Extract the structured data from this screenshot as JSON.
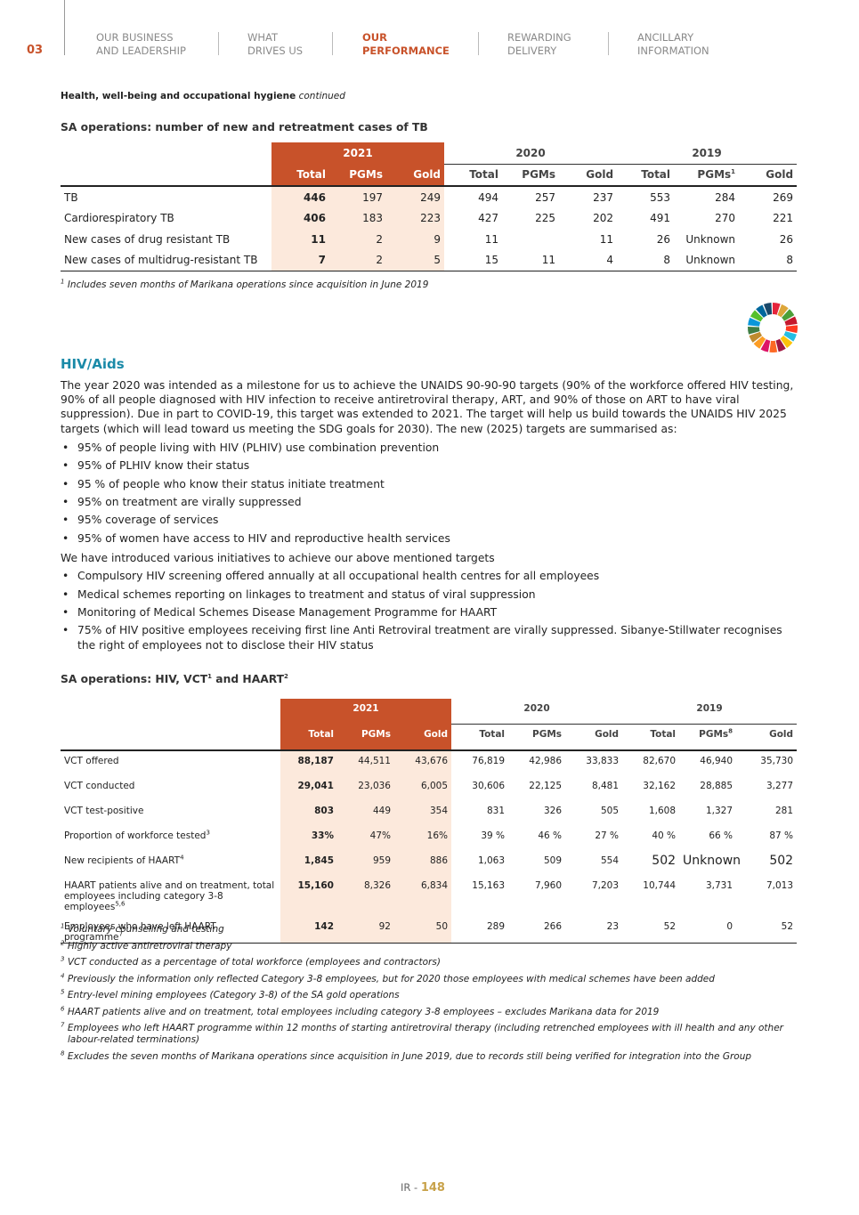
{
  "header": {
    "page_number": "03",
    "nav": [
      {
        "line1": "OUR BUSINESS",
        "line2": "AND LEADERSHIP"
      },
      {
        "line1": "WHAT",
        "line2": "DRIVES US"
      },
      {
        "line1": "OUR",
        "line2": "PERFORMANCE"
      },
      {
        "line1": "REWARDING",
        "line2": "DELIVERY"
      },
      {
        "line1": "ANCILLARY",
        "line2": "INFORMATION"
      }
    ]
  },
  "section_label": {
    "text": "Health, well-being and occupational hygiene",
    "suffix": "continued"
  },
  "table1": {
    "title": "SA operations: number of new and retreatment cases of TB",
    "years": [
      "2021",
      "2020",
      "2019"
    ],
    "columns": [
      "Total",
      "PGMs",
      "Gold",
      "Total",
      "PGMs",
      "Gold",
      "Total",
      {
        "text": "PGMs",
        "note": "1"
      },
      "Gold"
    ],
    "rows": [
      {
        "label": "TB",
        "values": [
          446,
          197,
          249,
          494,
          257,
          237,
          553,
          284,
          269
        ]
      },
      {
        "label": "Cardiorespiratory TB",
        "values": [
          406,
          183,
          223,
          427,
          225,
          202,
          491,
          270,
          221
        ]
      },
      {
        "label": "New cases of drug resistant TB",
        "values": [
          11,
          2,
          9,
          11,
          null,
          11,
          26,
          "Unknown",
          26
        ]
      },
      {
        "label": "New cases of multidrug-resistant TB",
        "values": [
          7,
          2,
          5,
          15,
          11,
          4,
          8,
          "Unknown",
          8
        ]
      }
    ],
    "footnotes": [
      {
        "mark": "1",
        "text": "Includes seven months of Marikana operations since acquisition in June 2019"
      }
    ]
  },
  "hiv": {
    "heading": "HIV/Aids",
    "paragraph": "The year 2020 was intended as a milestone for us to achieve the UNAIDS 90-90-90 targets (90% of the workforce offered HIV testing, 90% of all people diagnosed with HIV infection to receive antiretroviral therapy, ART, and 90% of those on ART to have viral suppression). Due in part to COVID-19, this target was extended to 2021. The target will help us build towards the UNAIDS HIV 2025 targets (which will lead toward us meeting the SDG goals for 2030). The new (2025) targets are summarised as:",
    "bullets": [
      "95% of people living with HIV (PLHIV) use combination prevention",
      "95% of PLHIV know their status",
      "95 % of people who know their status initiate treatment",
      "95% on treatment are virally suppressed",
      "95% coverage of services",
      "95% of women have access to HIV and reproductive health services"
    ],
    "paragraph2": "We have introduced various initiatives to achieve our above mentioned targets",
    "bullets2": [
      "Compulsory HIV screening offered annually at all occupational health centres for all employees",
      "Medical schemes reporting on linkages to treatment and status of viral suppression",
      "Monitoring of Medical Schemes Disease Management Programme for HAART",
      "75% of HIV positive employees receiving first line Anti Retroviral  treatment are virally suppressed.  Sibanye-Stillwater recognises the right of employees not to disclose their HIV status"
    ]
  },
  "table2": {
    "title": {
      "text": "SA operations: HIV, VCT",
      "note1": "1",
      "text2": " and HAART",
      "note2": "2"
    },
    "years": [
      "2021",
      "2020",
      "2019"
    ],
    "columns": [
      "Total",
      "PGMs",
      "Gold",
      "Total",
      "PGMs",
      "Gold",
      "Total",
      {
        "text": "PGMs",
        "note": "8"
      },
      "Gold"
    ],
    "rows": [
      {
        "label": "VCT offered",
        "values": [
          "88,187",
          "44,511",
          "43,676",
          "76,819",
          "42,986",
          "33,833",
          "82,670",
          "46,940",
          "35,730"
        ]
      },
      {
        "label": "VCT conducted",
        "values": [
          "29,041",
          "23,036",
          "6,005",
          "30,606",
          "22,125",
          "8,481",
          "32,162",
          "28,885",
          "3,277"
        ]
      },
      {
        "label": "VCT test-positive",
        "values": [
          803,
          449,
          354,
          831,
          326,
          505,
          "1,608",
          "1,327",
          281
        ]
      },
      {
        "label": "Proportion of workforce tested",
        "note": "3",
        "values": [
          "33%",
          "47%",
          "16%",
          "39 %",
          "46 %",
          "27 %",
          "40 %",
          "66 %",
          "87 %"
        ]
      },
      {
        "label": "New recipients of HAART",
        "note": "4",
        "values": [
          "1,845",
          959,
          886,
          "1,063",
          509,
          554,
          502,
          "Unknown",
          502
        ]
      },
      {
        "label": "HAART patients alive and on treatment, total employees including category 3-8 employees",
        "note": "5,6",
        "values": [
          "15,160",
          "8,326",
          "6,834",
          "15,163",
          "7,960",
          "7,203",
          "10,744",
          "3,731",
          "7,013"
        ]
      },
      {
        "label": "Employees who have left HAART programme",
        "note": "7",
        "values": [
          142,
          92,
          50,
          289,
          266,
          23,
          52,
          0,
          52
        ]
      }
    ],
    "footnotes": [
      {
        "mark": "1",
        "text": "Voluntary counselling and testing"
      },
      {
        "mark": "2",
        "text": "Highly active antiretroviral therapy"
      },
      {
        "mark": "3",
        "text": "VCT conducted as a percentage of total workforce (employees and contractors)"
      },
      {
        "mark": "4",
        "text": "Previously the information only reflected Category 3-8 employees, but for 2020 those employees with medical schemes have been added"
      },
      {
        "mark": "5",
        "text": "Entry-level mining employees (Category 3-8) of the SA gold operations"
      },
      {
        "mark": "6",
        "text": "HAART patients alive and on treatment, total employees including category 3-8 employees – excludes Marikana data for 2019"
      },
      {
        "mark": "7",
        "text": "Employees who left HAART programme within 12 months of starting antiretroviral therapy (including retrenched employees with ill health and any other labour-related terminations)"
      },
      {
        "mark": "8",
        "text": "Excludes the seven months of Marikana operations since acquisition in June 2019, due to records still being verified for integration into the Group"
      }
    ]
  },
  "footer": {
    "prefix": "IR - ",
    "page": "148"
  }
}
